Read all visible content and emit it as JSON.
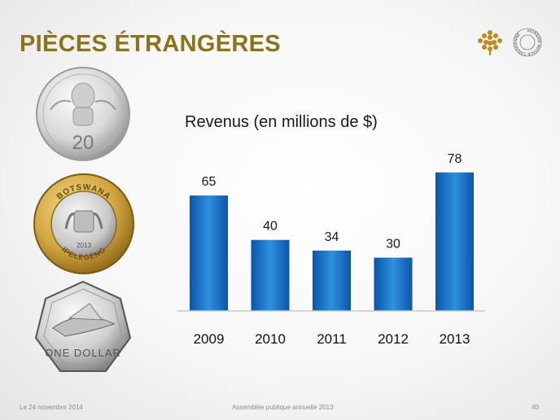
{
  "slide": {
    "title": "PIÈCES ÉTRANGÈRES",
    "logo_ring_text": "MONNAIE ROYALE CANADIENNE",
    "coins": [
      {
        "icon": "coin-20-icon",
        "denomination": "20"
      },
      {
        "icon": "coin-botswana-icon",
        "top_text": "BOTSWANA",
        "bottom_text": "IPELEGENG",
        "year": "2013"
      },
      {
        "icon": "coin-one-dollar-icon",
        "text": "ONE DOLLAR"
      }
    ]
  },
  "footer": {
    "date": "Le 24 novembre 2014",
    "event": "Assemblée publique annuelle 2013",
    "page": "40"
  },
  "colors": {
    "title": "#8a7318",
    "bar_top": "#2f8fe0",
    "bar_bottom": "#0b56a8",
    "logo": "#c08a1a"
  },
  "chart_data": {
    "type": "bar",
    "title": "Revenus (en millions de $)",
    "categories": [
      "2009",
      "2010",
      "2011",
      "2012",
      "2013"
    ],
    "values": [
      65,
      40,
      34,
      30,
      78
    ],
    "ylim": [
      0,
      88
    ],
    "grid": false,
    "legend": "none"
  }
}
